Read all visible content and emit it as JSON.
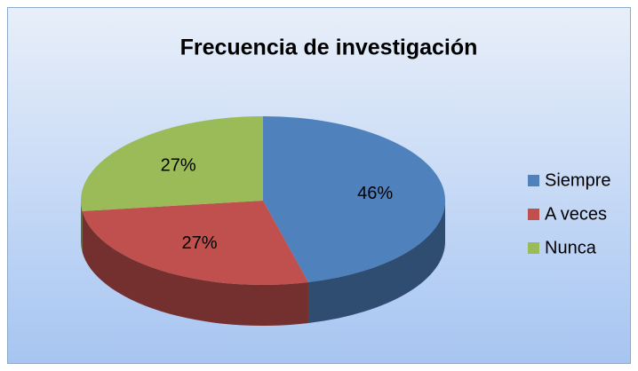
{
  "chart_data": {
    "type": "pie",
    "title": "Frecuencia de investigación",
    "categories": [
      "Siempre",
      "A veces",
      "Nunca"
    ],
    "values": [
      46,
      27,
      27
    ],
    "value_labels": [
      "46%",
      "27%",
      "27%"
    ],
    "colors": [
      "#4f81bd",
      "#c0504d",
      "#9bbb59"
    ],
    "legend": "right"
  }
}
